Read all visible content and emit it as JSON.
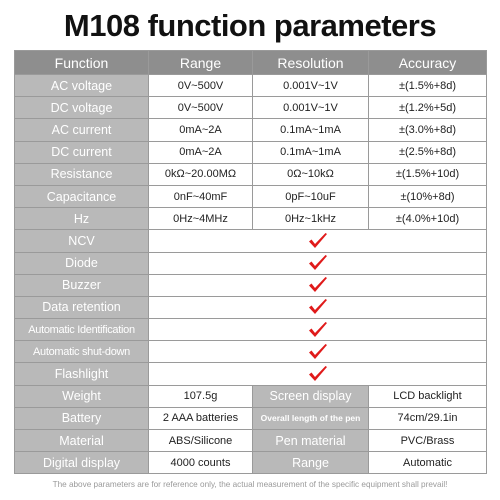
{
  "title": "M108 function parameters",
  "header": [
    "Function",
    "Range",
    "Resolution",
    "Accuracy"
  ],
  "measure_rows": [
    {
      "function": "AC voltage",
      "range": "0V~500V",
      "resolution": "0.001V~1V",
      "accuracy": "±(1.5%+8d)"
    },
    {
      "function": "DC voltage",
      "range": "0V~500V",
      "resolution": "0.001V~1V",
      "accuracy": "±(1.2%+5d)"
    },
    {
      "function": "AC current",
      "range": "0mA~2A",
      "resolution": "0.1mA~1mA",
      "accuracy": "±(3.0%+8d)"
    },
    {
      "function": "DC current",
      "range": "0mA~2A",
      "resolution": "0.1mA~1mA",
      "accuracy": "±(2.5%+8d)"
    },
    {
      "function": "Resistance",
      "range": "0kΩ~20.00MΩ",
      "resolution": "0Ω~10kΩ",
      "accuracy": "±(1.5%+10d)"
    },
    {
      "function": "Capacitance",
      "range": "0nF~40mF",
      "resolution": "0pF~10uF",
      "accuracy": "±(10%+8d)"
    },
    {
      "function": "Hz",
      "range": "0Hz~4MHz",
      "resolution": "0Hz~1kHz",
      "accuracy": "±(4.0%+10d)"
    }
  ],
  "feature_rows": [
    "NCV",
    "Diode",
    "Buzzer",
    "Data retention",
    "Automatic Identification",
    "Automatic shut-down",
    "Flashlight"
  ],
  "tick_icon": "red-check-mark-icon",
  "tick_color": "#e01a1a",
  "spec_rows": [
    {
      "label1": "Weight",
      "value1": "107.5g",
      "label2": "Screen display",
      "value2": "LCD backlight"
    },
    {
      "label1": "Battery",
      "value1": "2 AAA batteries",
      "label2": "Overall length of the pen",
      "value2": "74cm/29.1in"
    },
    {
      "label1": "Material",
      "value1": "ABS/Silicone",
      "label2": "Pen material",
      "value2": "PVC/Brass"
    },
    {
      "label1": "Digital display",
      "value1": "4000 counts",
      "label2": "Range",
      "value2": "Automatic"
    }
  ],
  "footnote": "The above parameters are for reference only, the actual measurement of the specific equipment shall prevail!"
}
